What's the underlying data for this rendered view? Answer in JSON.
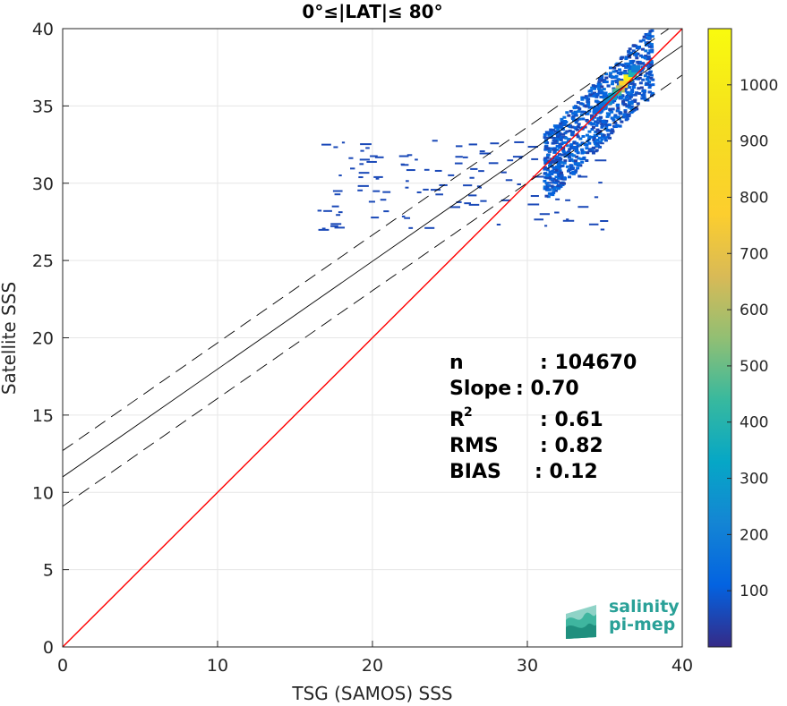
{
  "chart_data": {
    "type": "heatmap",
    "title": "0°≤|LAT|≤ 80°",
    "xlabel": "TSG (SAMOS) SSS",
    "ylabel": "Satellite SSS",
    "xlim": [
      0,
      40
    ],
    "ylim": [
      0,
      40
    ],
    "xticks": [
      "0",
      "10",
      "20",
      "30",
      "40"
    ],
    "yticks": [
      "0",
      "5",
      "10",
      "15",
      "20",
      "25",
      "30",
      "35",
      "40"
    ],
    "grid": true,
    "colorbar": {
      "range": [
        0,
        1100
      ],
      "ticks": [
        "100",
        "200",
        "300",
        "400",
        "500",
        "600",
        "700",
        "800",
        "900",
        "1000"
      ],
      "colormap": "parula"
    },
    "lines": [
      {
        "role": "one-to-one",
        "style": "solid",
        "color": "#ff0000",
        "x": [
          0,
          40
        ],
        "y": [
          0,
          40
        ]
      },
      {
        "role": "regression",
        "style": "solid",
        "color": "#000000",
        "x": [
          0,
          40
        ],
        "y": [
          11.0,
          38.9
        ]
      },
      {
        "role": "regression-upper",
        "style": "dashed",
        "color": "#000000",
        "x": [
          0,
          40
        ],
        "y": [
          12.7,
          40.6
        ]
      },
      {
        "role": "regression-lower",
        "style": "dashed",
        "color": "#000000",
        "x": [
          0,
          40
        ],
        "y": [
          9.1,
          37.0
        ]
      }
    ],
    "density_cells": [
      {
        "x": 36.5,
        "y": 36.8,
        "count": 1050
      },
      {
        "x": 36.2,
        "y": 36.4,
        "count": 800
      },
      {
        "x": 36.0,
        "y": 36.1,
        "count": 620
      },
      {
        "x": 35.8,
        "y": 35.9,
        "count": 450
      },
      {
        "x": 36.8,
        "y": 37.1,
        "count": 380
      },
      {
        "x": 35.5,
        "y": 35.6,
        "count": 300
      },
      {
        "x": 35.2,
        "y": 35.3,
        "count": 240
      },
      {
        "x": 37.0,
        "y": 37.4,
        "count": 200
      },
      {
        "x": 34.9,
        "y": 35.0,
        "count": 160
      },
      {
        "x": 34.5,
        "y": 34.7,
        "count": 120
      }
    ],
    "stats": [
      {
        "label": "n",
        "value": ": 104670"
      },
      {
        "label": "Slope",
        "value": ": 0.70"
      },
      {
        "label": "R",
        "sup": "2",
        "value": ": 0.61"
      },
      {
        "label": "RMS",
        "value": ": 0.82"
      },
      {
        "label": "BIAS",
        "value": ": 0.12"
      }
    ]
  },
  "logo": {
    "line1": "salinity",
    "line2": "pi-mep",
    "color": "#2aa198"
  },
  "colors": {
    "one_to_one": "#ff0000",
    "regression": "#000000",
    "grid": "#e6e6e6",
    "axes": "#262626"
  }
}
